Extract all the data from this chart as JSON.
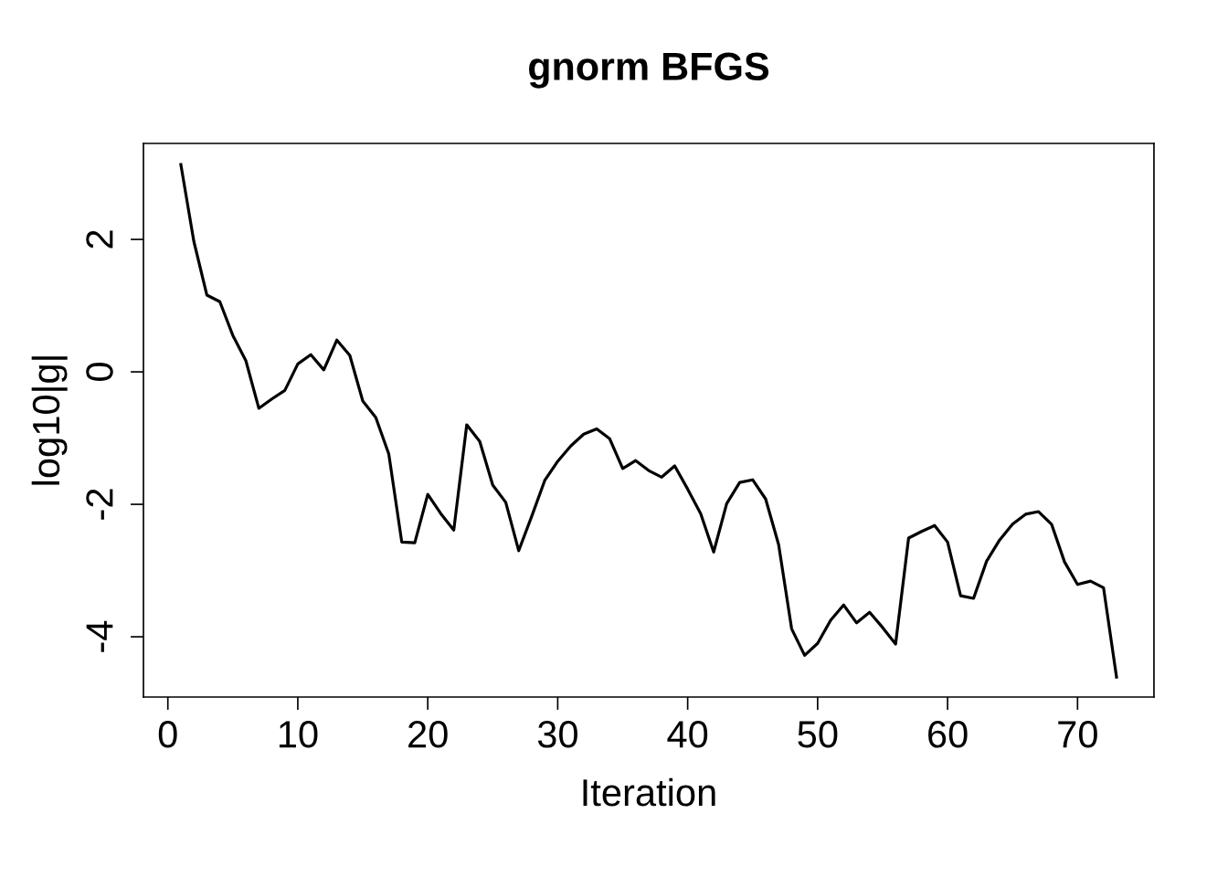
{
  "chart_data": {
    "type": "line",
    "title": "gnorm BFGS",
    "xlabel": "Iteration",
    "ylabel": "log10|g|",
    "x": [
      1,
      2,
      3,
      4,
      5,
      6,
      7,
      8,
      9,
      10,
      11,
      12,
      13,
      14,
      15,
      16,
      17,
      18,
      19,
      20,
      21,
      22,
      23,
      24,
      25,
      26,
      27,
      28,
      29,
      30,
      31,
      32,
      33,
      34,
      35,
      36,
      37,
      38,
      39,
      40,
      41,
      42,
      43,
      44,
      45,
      46,
      47,
      48,
      49,
      50,
      51,
      52,
      53,
      54,
      55,
      56,
      57,
      58,
      59,
      60,
      61,
      62,
      63,
      64,
      65,
      66,
      67,
      68,
      69,
      70,
      71,
      72,
      73
    ],
    "series": [
      {
        "color": "#000000",
        "values": [
          3.13,
          1.97,
          1.16,
          1.06,
          0.55,
          0.17,
          -0.55,
          -0.41,
          -0.28,
          0.12,
          0.26,
          0.03,
          0.48,
          0.25,
          -0.44,
          -0.69,
          -1.24,
          -2.57,
          -2.58,
          -1.85,
          -2.14,
          -2.39,
          -0.8,
          -1.05,
          -1.71,
          -1.97,
          -2.7,
          -2.18,
          -1.64,
          -1.35,
          -1.12,
          -0.94,
          -0.86,
          -1.01,
          -1.46,
          -1.34,
          -1.49,
          -1.59,
          -1.42,
          -1.77,
          -2.14,
          -2.72,
          -1.99,
          -1.67,
          -1.63,
          -1.92,
          -2.61,
          -3.88,
          -4.28,
          -4.1,
          -3.75,
          -3.52,
          -3.79,
          -3.63,
          -3.86,
          -4.11,
          -2.51,
          -2.41,
          -2.32,
          -2.57,
          -3.38,
          -3.42,
          -2.86,
          -2.54,
          -2.3,
          -2.15,
          -2.11,
          -2.3,
          -2.87,
          -3.21,
          -3.16,
          -3.26,
          -4.61
        ]
      }
    ],
    "xlim": [
      -1.88,
      75.88
    ],
    "ylim": [
      -4.91,
      3.45
    ],
    "xticks": [
      0,
      10,
      20,
      30,
      40,
      50,
      60,
      70
    ],
    "yticks": [
      -4,
      -2,
      0,
      2
    ],
    "grid": false,
    "legend": false,
    "marker": "none",
    "line_style": "solid"
  }
}
